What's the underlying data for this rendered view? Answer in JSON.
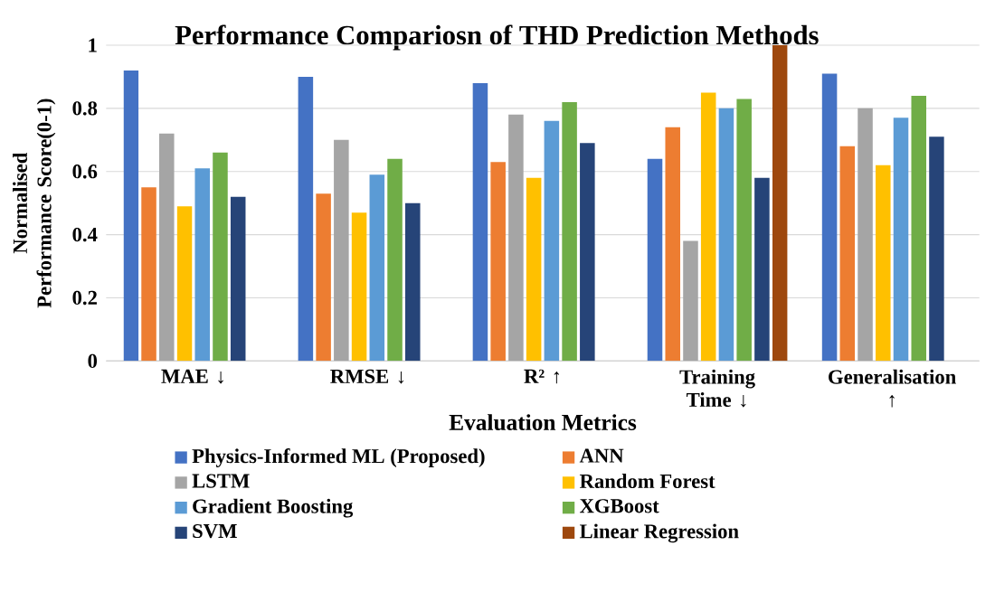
{
  "chart_data": {
    "type": "bar",
    "title": "Performance Compariosn of THD Prediction Methods",
    "xlabel": "Evaluation Metrics",
    "ylabel": "Normalised Performance Score(0-1)",
    "categories": [
      "MAE ↓",
      "RMSE ↓",
      "R² ↑",
      "Training Time ↓",
      "Generalisation ↑"
    ],
    "series": [
      {
        "name": "Physics-Informed ML (Proposed)",
        "color": "#4472c4",
        "values": [
          0.92,
          0.9,
          0.88,
          0.64,
          0.91
        ]
      },
      {
        "name": "ANN",
        "color": "#ed7d31",
        "values": [
          0.55,
          0.53,
          0.63,
          0.74,
          0.68
        ]
      },
      {
        "name": "LSTM",
        "color": "#a5a5a5",
        "values": [
          0.72,
          0.7,
          0.78,
          0.38,
          0.8
        ]
      },
      {
        "name": "Random Forest",
        "color": "#ffc000",
        "values": [
          0.49,
          0.47,
          0.58,
          0.85,
          0.62
        ]
      },
      {
        "name": "Gradient Boosting",
        "color": "#5b9bd5",
        "values": [
          0.61,
          0.59,
          0.76,
          0.8,
          0.77
        ]
      },
      {
        "name": "XGBoost",
        "color": "#70ad47",
        "values": [
          0.66,
          0.64,
          0.82,
          0.83,
          0.84
        ]
      },
      {
        "name": "SVM",
        "color": "#264478",
        "values": [
          0.52,
          0.5,
          0.69,
          0.58,
          0.71
        ]
      },
      {
        "name": "Linear Regression",
        "color": "#9e480e",
        "values": [
          null,
          null,
          null,
          1.0,
          null
        ]
      }
    ],
    "ylim": [
      0,
      1
    ],
    "yticks": [
      0,
      0.2,
      0.4,
      0.6,
      0.8,
      1
    ],
    "grid": "y",
    "legend": "bottom"
  }
}
